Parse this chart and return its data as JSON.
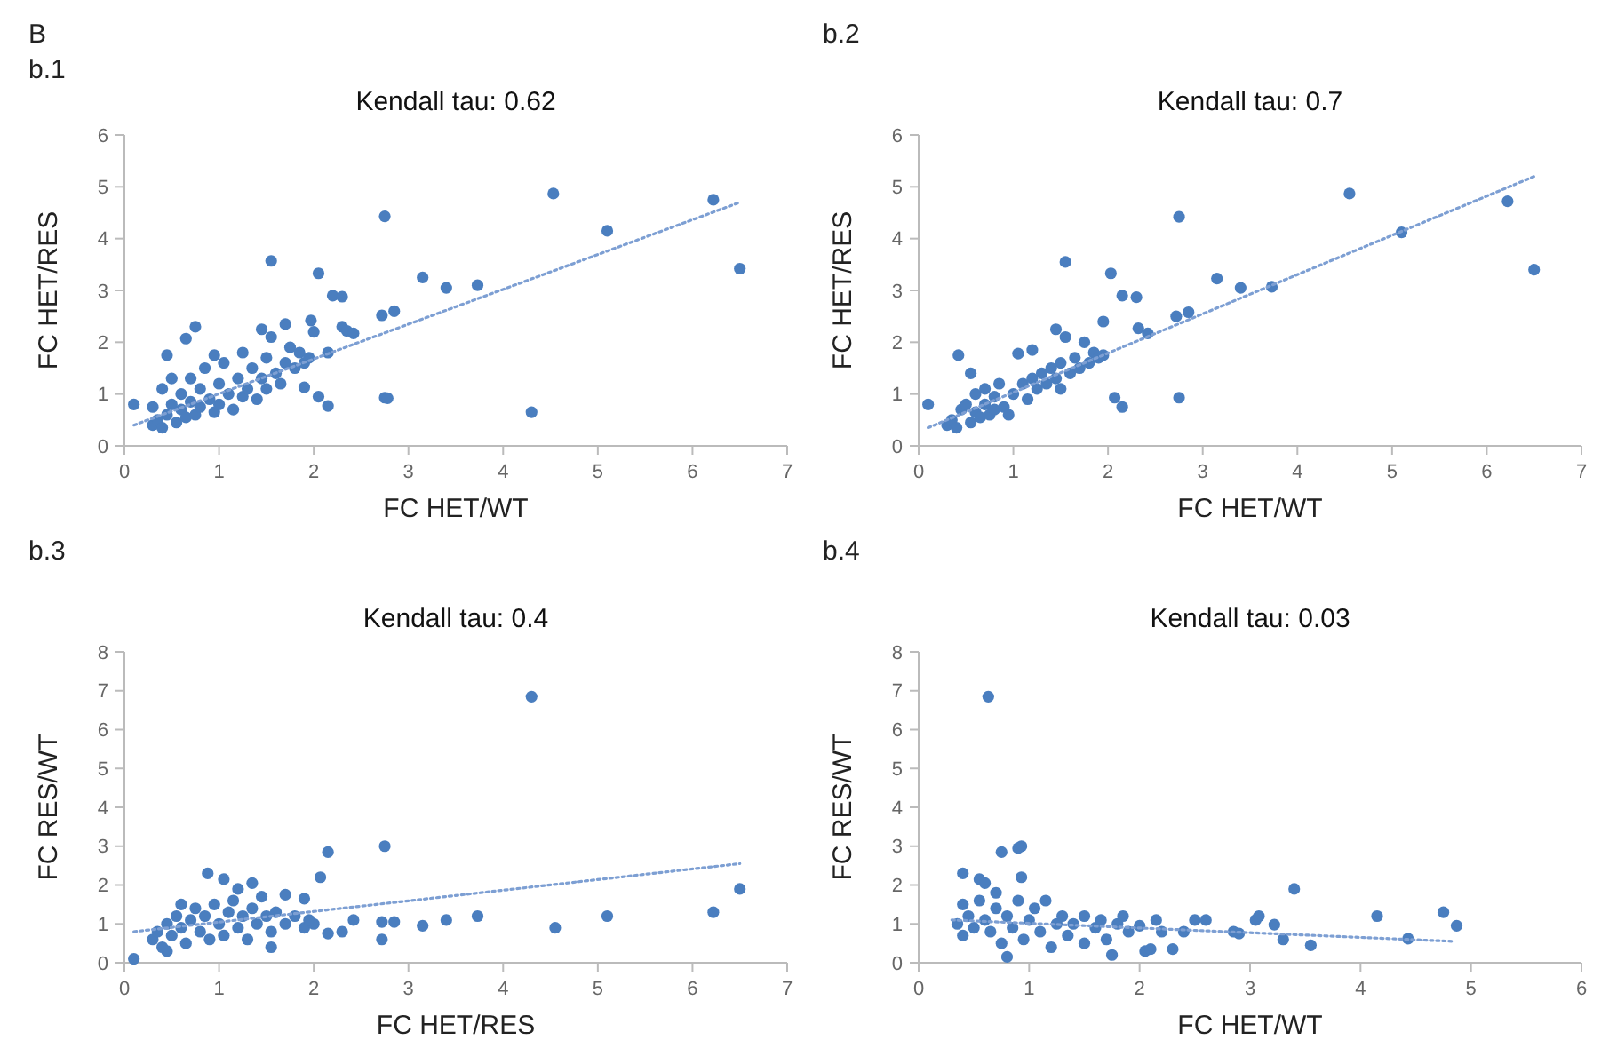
{
  "chart_data": [
    {
      "type": "scatter",
      "title": "Kendall tau: 0.62",
      "xlabel": "FC HET/WT",
      "ylabel": "FC HET/RES",
      "annotations": [
        "B",
        "b.1"
      ],
      "xlim": [
        0,
        7
      ],
      "ylim": [
        0,
        6
      ],
      "xticks": [
        0,
        1,
        2,
        3,
        4,
        5,
        6,
        7
      ],
      "yticks": [
        0,
        1,
        2,
        3,
        4,
        5,
        6
      ],
      "marker": "circle",
      "series": [
        {
          "type": "scatter",
          "color": "#4a7ebf",
          "x": [
            4.53,
            6.22,
            5.1,
            2.75,
            6.5,
            1.55,
            2.05,
            3.15,
            3.4,
            3.73,
            2.2,
            2.3,
            2.72,
            2.85,
            2.3,
            2.35,
            2.42,
            1.97,
            2.0,
            2.75,
            2.78,
            4.3,
            2.15,
            2.05,
            1.9,
            0.1,
            0.45,
            0.75,
            0.65,
            2.15,
            1.7,
            0.3,
            0.35,
            0.4,
            0.45,
            0.5,
            0.55,
            0.6,
            0.6,
            0.65,
            0.7,
            0.7,
            0.75,
            0.8,
            0.8,
            0.85,
            0.9,
            0.95,
            1.0,
            1.0,
            1.05,
            1.1,
            1.15,
            1.2,
            1.25,
            1.3,
            1.35,
            1.4,
            1.45,
            1.5,
            1.5,
            1.55,
            1.6,
            1.65,
            1.7,
            1.75,
            1.8,
            1.85,
            1.9,
            1.95,
            0.5,
            0.4,
            0.3,
            1.45,
            1.25,
            0.95
          ],
          "values": [
            4.87,
            4.75,
            4.15,
            4.43,
            3.42,
            3.57,
            3.33,
            3.25,
            3.05,
            3.1,
            2.9,
            2.88,
            2.52,
            2.6,
            2.3,
            2.22,
            2.17,
            2.42,
            2.2,
            0.93,
            0.92,
            0.65,
            0.77,
            0.95,
            1.13,
            0.8,
            1.75,
            2.3,
            2.07,
            1.8,
            2.35,
            0.4,
            0.5,
            0.35,
            0.6,
            0.8,
            0.45,
            0.7,
            1.0,
            0.55,
            0.85,
            1.3,
            0.6,
            1.1,
            0.75,
            1.5,
            0.9,
            0.65,
            1.2,
            0.8,
            1.6,
            1.0,
            0.7,
            1.3,
            0.95,
            1.1,
            1.5,
            0.9,
            1.3,
            1.7,
            1.1,
            2.1,
            1.4,
            1.2,
            1.6,
            1.9,
            1.5,
            1.8,
            1.6,
            1.7,
            1.3,
            1.1,
            0.75,
            2.25,
            1.8,
            1.75
          ]
        },
        {
          "type": "line",
          "color": "#7d9fd3",
          "line_style": "dotted",
          "marker": "none",
          "x": [
            0.1,
            6.5
          ],
          "values": [
            0.4,
            4.7
          ]
        }
      ]
    },
    {
      "type": "scatter",
      "title": "Kendall tau: 0.7",
      "xlabel": "FC HET/WT",
      "ylabel": "FC HET/RES",
      "annotations": [
        "b.2"
      ],
      "xlim": [
        0,
        7
      ],
      "ylim": [
        0,
        6
      ],
      "xticks": [
        0,
        1,
        2,
        3,
        4,
        5,
        6,
        7
      ],
      "yticks": [
        0,
        1,
        2,
        3,
        4,
        5,
        6
      ],
      "marker": "circle",
      "series": [
        {
          "type": "scatter",
          "color": "#4a7ebf",
          "x": [
            4.55,
            6.22,
            5.1,
            2.75,
            6.5,
            1.55,
            2.03,
            3.15,
            3.4,
            3.73,
            2.15,
            2.3,
            2.72,
            2.85,
            2.32,
            2.42,
            1.95,
            2.75,
            2.15,
            2.07,
            0.1,
            0.42,
            1.05,
            1.2,
            0.3,
            0.35,
            0.4,
            0.45,
            0.5,
            0.55,
            0.6,
            0.6,
            0.65,
            0.7,
            0.7,
            0.75,
            0.8,
            0.8,
            0.85,
            0.9,
            0.95,
            1.0,
            1.1,
            1.15,
            1.2,
            1.25,
            1.3,
            1.35,
            1.4,
            1.45,
            1.5,
            1.5,
            1.55,
            1.6,
            1.65,
            1.7,
            1.75,
            1.8,
            1.85,
            1.9,
            1.95,
            1.45,
            0.55
          ],
          "values": [
            4.87,
            4.72,
            4.12,
            4.42,
            3.4,
            3.55,
            3.33,
            3.23,
            3.05,
            3.07,
            2.9,
            2.87,
            2.5,
            2.58,
            2.27,
            2.17,
            2.4,
            0.93,
            0.75,
            0.93,
            0.8,
            1.75,
            1.78,
            1.85,
            0.4,
            0.5,
            0.35,
            0.7,
            0.8,
            0.45,
            0.65,
            1.0,
            0.55,
            0.8,
            1.1,
            0.6,
            0.95,
            0.7,
            1.2,
            0.75,
            0.6,
            1.0,
            1.2,
            0.9,
            1.3,
            1.1,
            1.4,
            1.2,
            1.5,
            1.3,
            1.6,
            1.1,
            2.1,
            1.4,
            1.7,
            1.5,
            2.0,
            1.6,
            1.8,
            1.7,
            1.75,
            2.25,
            1.4
          ]
        },
        {
          "type": "line",
          "color": "#7d9fd3",
          "line_style": "dotted",
          "marker": "none",
          "x": [
            0.1,
            6.5
          ],
          "values": [
            0.35,
            5.2
          ]
        }
      ]
    },
    {
      "type": "scatter",
      "title": "Kendall tau: 0.4",
      "xlabel": "FC HET/RES",
      "ylabel": "FC RES/WT",
      "annotations": [
        "b.3"
      ],
      "xlim": [
        0,
        7
      ],
      "ylim": [
        0,
        8
      ],
      "xticks": [
        0,
        1,
        2,
        3,
        4,
        5,
        6,
        7
      ],
      "yticks": [
        0,
        1,
        2,
        3,
        4,
        5,
        6,
        7,
        8
      ],
      "marker": "circle",
      "series": [
        {
          "type": "scatter",
          "color": "#4a7ebf",
          "x": [
            4.3,
            2.75,
            2.15,
            2.07,
            0.88,
            1.05,
            6.5,
            6.22,
            5.1,
            4.55,
            3.73,
            3.4,
            3.15,
            2.85,
            2.72,
            2.72,
            2.42,
            2.3,
            2.15,
            0.1,
            1.55,
            1.9,
            1.35,
            1.7,
            0.3,
            0.35,
            0.4,
            0.45,
            0.5,
            0.55,
            0.6,
            0.6,
            0.65,
            0.7,
            0.75,
            0.8,
            0.85,
            0.9,
            0.95,
            1.0,
            1.05,
            1.1,
            1.15,
            1.2,
            1.25,
            1.3,
            1.35,
            1.4,
            1.45,
            1.5,
            1.55,
            1.6,
            1.7,
            1.8,
            1.9,
            2.0,
            1.95,
            0.45,
            1.2
          ],
          "values": [
            6.85,
            3.0,
            2.85,
            2.2,
            2.3,
            2.15,
            1.9,
            1.3,
            1.2,
            0.9,
            1.2,
            1.1,
            0.95,
            1.05,
            1.05,
            0.6,
            1.1,
            0.8,
            0.75,
            0.1,
            0.4,
            1.65,
            2.05,
            1.75,
            0.6,
            0.8,
            0.4,
            1.0,
            0.7,
            1.2,
            0.9,
            1.5,
            0.5,
            1.1,
            1.4,
            0.8,
            1.2,
            0.6,
            1.5,
            1.0,
            0.7,
            1.3,
            1.6,
            0.9,
            1.2,
            0.6,
            1.4,
            1.0,
            1.7,
            1.2,
            0.8,
            1.3,
            1.0,
            1.2,
            0.9,
            1.0,
            1.1,
            0.3,
            1.9
          ]
        },
        {
          "type": "line",
          "color": "#7d9fd3",
          "line_style": "dotted",
          "marker": "none",
          "x": [
            0.1,
            6.5
          ],
          "values": [
            0.8,
            2.55
          ]
        }
      ]
    },
    {
      "type": "scatter",
      "title": "Kendall tau: 0.03",
      "xlabel": "FC HET/WT",
      "ylabel": "FC RES/WT",
      "annotations": [
        "b.4"
      ],
      "xlim": [
        0,
        6
      ],
      "ylim": [
        0,
        8
      ],
      "xticks": [
        0,
        1,
        2,
        3,
        4,
        5,
        6
      ],
      "yticks": [
        0,
        1,
        2,
        3,
        4,
        5,
        6,
        7,
        8
      ],
      "marker": "circle",
      "series": [
        {
          "type": "scatter",
          "color": "#4a7ebf",
          "x": [
            0.63,
            0.75,
            0.93,
            0.9,
            0.93,
            0.4,
            0.55,
            0.6,
            3.4,
            4.75,
            4.15,
            4.87,
            4.43,
            3.55,
            3.3,
            3.22,
            3.05,
            3.08,
            2.9,
            2.85,
            2.5,
            2.6,
            2.3,
            2.05,
            2.1,
            1.75,
            0.8,
            2.15,
            2.2,
            2.4,
            0.35,
            0.4,
            0.4,
            0.45,
            0.5,
            0.55,
            0.6,
            0.65,
            0.7,
            0.7,
            0.75,
            0.8,
            0.85,
            0.9,
            0.95,
            1.0,
            1.05,
            1.1,
            1.15,
            1.2,
            1.25,
            1.3,
            1.35,
            1.4,
            1.5,
            1.5,
            1.6,
            1.65,
            1.7,
            1.8,
            1.85,
            1.9,
            2.0
          ],
          "values": [
            6.85,
            2.85,
            3.0,
            2.95,
            2.2,
            2.3,
            2.15,
            2.05,
            1.9,
            1.3,
            1.2,
            0.95,
            0.62,
            0.45,
            0.6,
            0.98,
            1.1,
            1.2,
            0.75,
            0.8,
            1.1,
            1.1,
            0.35,
            0.3,
            0.35,
            0.2,
            0.15,
            1.1,
            0.8,
            0.8,
            1.0,
            0.7,
            1.5,
            1.2,
            0.9,
            1.6,
            1.1,
            0.8,
            1.4,
            1.8,
            0.5,
            1.2,
            0.9,
            1.6,
            0.6,
            1.1,
            1.4,
            0.8,
            1.6,
            0.4,
            1.0,
            1.2,
            0.7,
            1.0,
            1.2,
            0.5,
            0.9,
            1.1,
            0.6,
            1.0,
            1.2,
            0.8,
            0.95
          ]
        },
        {
          "type": "line",
          "color": "#7d9fd3",
          "line_style": "dotted",
          "marker": "none",
          "x": [
            0.3,
            4.85
          ],
          "values": [
            1.1,
            0.55
          ]
        }
      ]
    }
  ]
}
